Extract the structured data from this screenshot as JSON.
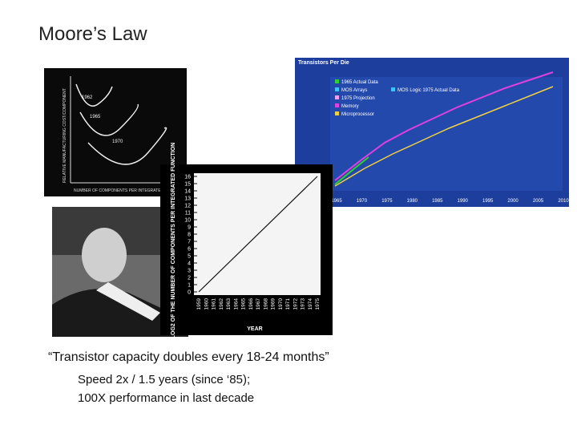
{
  "title": "Moore’s Law",
  "cost_chart": {
    "curve_labels": [
      "1962",
      "1965",
      "1970"
    ],
    "x_label": "NUMBER OF COMPONENTS PER INTEGRATED CIRCUIT",
    "y_label": "RELATIVE MANUFACTURING COST/COMPONENT"
  },
  "transistor_chart": {
    "title": "Transistors Per Die",
    "legend": [
      "1965 Actual Data",
      "MOS Arrays",
      "MOS Logic 1975 Actual Data",
      "1975 Projection",
      "Memory",
      "Microprocessor"
    ],
    "years": [
      "1965",
      "1970",
      "1975",
      "1980",
      "1985",
      "1990",
      "1995",
      "2000",
      "2005",
      "2010"
    ]
  },
  "log_chart": {
    "y_label": "LOG2 OF THE NUMBER OF COMPONENTS PER INTEGRATED FUNCTION",
    "x_label": "YEAR",
    "yticks": [
      0,
      1,
      2,
      3,
      4,
      5,
      6,
      7,
      8,
      9,
      10,
      11,
      12,
      13,
      14,
      15,
      16
    ],
    "years": [
      "1959",
      "1960",
      "1961",
      "1962",
      "1963",
      "1964",
      "1965",
      "1966",
      "1967",
      "1968",
      "1969",
      "1970",
      "1971",
      "1972",
      "1973",
      "1974",
      "1975"
    ]
  },
  "quote": "“Transistor capacity doubles every 18-24 months”",
  "points": [
    "Speed 2x / 1.5 years (since ‘85);",
    "100X performance in last decade"
  ]
}
